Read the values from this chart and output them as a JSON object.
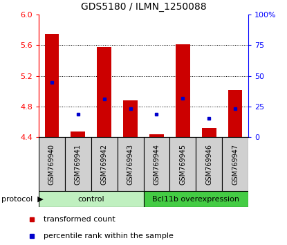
{
  "title": "GDS5180 / ILMN_1250088",
  "samples": [
    "GSM769940",
    "GSM769941",
    "GSM769942",
    "GSM769943",
    "GSM769944",
    "GSM769945",
    "GSM769946",
    "GSM769947"
  ],
  "red_values": [
    5.75,
    4.47,
    5.58,
    4.88,
    4.44,
    5.61,
    4.52,
    5.02
  ],
  "blue_values": [
    5.12,
    4.7,
    4.9,
    4.77,
    4.7,
    4.91,
    4.65,
    4.77
  ],
  "ymin": 4.4,
  "ymax": 6.0,
  "y2min": 0,
  "y2max": 100,
  "yticks": [
    4.4,
    4.8,
    5.2,
    5.6,
    6.0
  ],
  "y2ticks": [
    0,
    25,
    50,
    75,
    100
  ],
  "y2labels": [
    "0",
    "25",
    "50",
    "75",
    "100%"
  ],
  "control_label": "control",
  "treatment_label": "Bcl11b overexpression",
  "protocol_label": "protocol",
  "legend_red": "transformed count",
  "legend_blue": "percentile rank within the sample",
  "control_color": "#c0f0c0",
  "treatment_color": "#44cc44",
  "label_bg_color": "#d0d0d0",
  "bar_color": "#cc0000",
  "blue_color": "#0000cc",
  "bar_bottom": 4.4,
  "bar_width": 0.55,
  "n_control": 4,
  "n_treatment": 4
}
